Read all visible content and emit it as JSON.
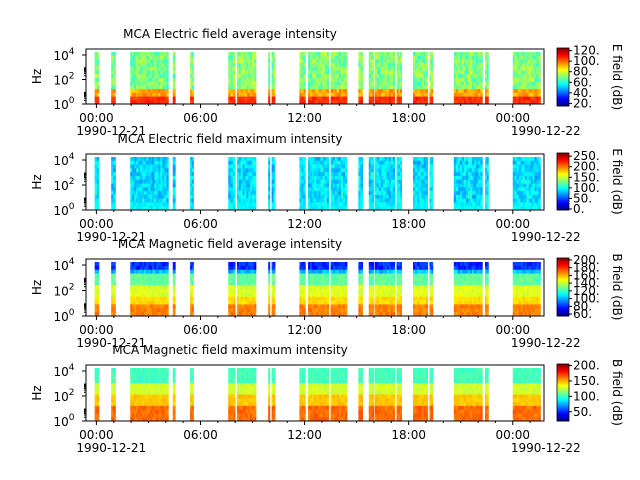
{
  "chart_data": [
    {
      "type": "heatmap",
      "title": "MCA  Electric field average intensity",
      "ylabel": "Hz",
      "colorbar_label": "E field (dB)",
      "colorbar_ticks": [
        "20.",
        "40.",
        "60.",
        "80.",
        "100.",
        "120."
      ],
      "colorbar_range": [
        15,
        125
      ],
      "y_ticks": [
        {
          "base": "10",
          "exp": "0"
        },
        {
          "base": "10",
          "exp": "2"
        },
        {
          "base": "10",
          "exp": "4"
        }
      ],
      "x_ticks": [
        "00:00",
        "06:00",
        "12:00",
        "18:00",
        "00:00"
      ],
      "x_dates": [
        "1990-12-21",
        "1990-12-22"
      ],
      "palette": "warm"
    },
    {
      "type": "heatmap",
      "title": "MCA  Electric field maximum intensity",
      "ylabel": "Hz",
      "colorbar_label": "E field (dB)",
      "colorbar_ticks": [
        "0.",
        "50.",
        "100.",
        "150.",
        "200.",
        "250."
      ],
      "colorbar_range": [
        -5,
        265
      ],
      "y_ticks": [
        {
          "base": "10",
          "exp": "0"
        },
        {
          "base": "10",
          "exp": "2"
        },
        {
          "base": "10",
          "exp": "4"
        }
      ],
      "x_ticks": [
        "00:00",
        "06:00",
        "12:00",
        "18:00",
        "00:00"
      ],
      "x_dates": [
        "1990-12-21",
        "1990-12-22"
      ],
      "palette": "cool"
    },
    {
      "type": "heatmap",
      "title": "MCA  Magnetic field average intensity",
      "ylabel": "Hz",
      "colorbar_label": "B field (dB)",
      "colorbar_ticks": [
        "60.",
        "80.",
        "100.",
        "120.",
        "140.",
        "160.",
        "180.",
        "200."
      ],
      "colorbar_range": [
        55,
        205
      ],
      "y_ticks": [
        {
          "base": "10",
          "exp": "0"
        },
        {
          "base": "10",
          "exp": "2"
        },
        {
          "base": "10",
          "exp": "4"
        }
      ],
      "x_ticks": [
        "00:00",
        "06:00",
        "12:00",
        "18:00",
        "00:00"
      ],
      "x_dates": [
        "1990-12-21",
        "1990-12-22"
      ],
      "palette": "magnetic"
    },
    {
      "type": "heatmap",
      "title": "MCA  Magnetic field maximum intensity",
      "ylabel": "Hz",
      "colorbar_label": "B field (dB)",
      "colorbar_ticks": [
        "50.",
        "100.",
        "150.",
        "200."
      ],
      "colorbar_range": [
        20,
        205
      ],
      "y_ticks": [
        {
          "base": "10",
          "exp": "0"
        },
        {
          "base": "10",
          "exp": "2"
        },
        {
          "base": "10",
          "exp": "4"
        }
      ],
      "x_ticks": [
        "00:00",
        "06:00",
        "12:00",
        "18:00",
        "00:00"
      ],
      "x_dates": [
        "1990-12-21",
        "1990-12-22"
      ],
      "palette": "magnetic-max"
    }
  ],
  "data_intervals_hours": [
    [
      -0.1,
      0.15
    ],
    [
      0.85,
      1.1
    ],
    [
      1.95,
      4.15
    ],
    [
      4.4,
      4.55
    ],
    [
      5.4,
      5.6
    ],
    [
      7.6,
      8.0
    ],
    [
      8.1,
      9.2
    ],
    [
      9.9,
      10.0
    ],
    [
      10.1,
      10.3
    ],
    [
      11.7,
      12.05
    ],
    [
      12.2,
      13.4
    ],
    [
      13.5,
      14.45
    ],
    [
      15.1,
      15.35
    ],
    [
      15.7,
      16.0
    ],
    [
      16.05,
      17.2
    ],
    [
      17.3,
      17.6
    ],
    [
      18.25,
      19.1
    ],
    [
      19.2,
      19.4
    ],
    [
      20.6,
      22.25
    ],
    [
      22.4,
      22.6
    ],
    [
      24.0,
      25.6
    ]
  ],
  "time_axis_hours": [
    -0.6,
    25.8
  ]
}
